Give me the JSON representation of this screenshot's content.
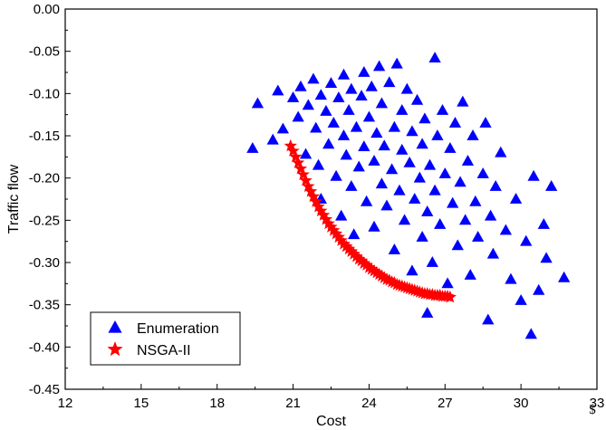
{
  "chart_data": {
    "type": "scatter",
    "title": "",
    "xlabel": "Cost",
    "ylabel": "Traffic flow",
    "x_unit": "$",
    "xlim": [
      12,
      33
    ],
    "ylim": [
      -0.45,
      0.0
    ],
    "x_ticks": [
      "12",
      "15",
      "18",
      "21",
      "24",
      "27",
      "30",
      "33"
    ],
    "y_ticks": [
      "0.00",
      "-0.05",
      "-0.10",
      "-0.15",
      "-0.20",
      "-0.25",
      "-0.30",
      "-0.35",
      "-0.40",
      "-0.45"
    ],
    "grid": false,
    "legend_position": "bottom-left",
    "series": [
      {
        "name": "Enumeration",
        "marker": "triangle",
        "color": "#0000ff",
        "points": [
          [
            19.4,
            -0.165
          ],
          [
            19.6,
            -0.112
          ],
          [
            20.2,
            -0.155
          ],
          [
            20.4,
            -0.097
          ],
          [
            20.6,
            -0.142
          ],
          [
            21.0,
            -0.105
          ],
          [
            21.2,
            -0.128
          ],
          [
            21.3,
            -0.092
          ],
          [
            21.5,
            -0.172
          ],
          [
            21.6,
            -0.114
          ],
          [
            21.8,
            -0.083
          ],
          [
            21.9,
            -0.141
          ],
          [
            22.0,
            -0.185
          ],
          [
            22.1,
            -0.225
          ],
          [
            22.1,
            -0.102
          ],
          [
            22.3,
            -0.121
          ],
          [
            22.4,
            -0.16
          ],
          [
            22.5,
            -0.088
          ],
          [
            22.6,
            -0.135
          ],
          [
            22.7,
            -0.198
          ],
          [
            22.8,
            -0.105
          ],
          [
            22.9,
            -0.245
          ],
          [
            23.0,
            -0.15
          ],
          [
            23.0,
            -0.078
          ],
          [
            23.1,
            -0.173
          ],
          [
            23.2,
            -0.12
          ],
          [
            23.3,
            -0.21
          ],
          [
            23.3,
            -0.095
          ],
          [
            23.4,
            -0.267
          ],
          [
            23.5,
            -0.14
          ],
          [
            23.6,
            -0.187
          ],
          [
            23.7,
            -0.103
          ],
          [
            23.8,
            -0.075
          ],
          [
            23.8,
            -0.163
          ],
          [
            23.9,
            -0.228
          ],
          [
            24.0,
            -0.128
          ],
          [
            24.1,
            -0.092
          ],
          [
            24.2,
            -0.18
          ],
          [
            24.2,
            -0.258
          ],
          [
            24.3,
            -0.147
          ],
          [
            24.4,
            -0.068
          ],
          [
            24.5,
            -0.207
          ],
          [
            24.5,
            -0.112
          ],
          [
            24.6,
            -0.162
          ],
          [
            24.7,
            -0.233
          ],
          [
            24.8,
            -0.087
          ],
          [
            24.9,
            -0.19
          ],
          [
            25.0,
            -0.14
          ],
          [
            25.0,
            -0.285
          ],
          [
            25.1,
            -0.065
          ],
          [
            25.2,
            -0.215
          ],
          [
            25.3,
            -0.12
          ],
          [
            25.3,
            -0.167
          ],
          [
            25.4,
            -0.25
          ],
          [
            25.5,
            -0.095
          ],
          [
            25.6,
            -0.182
          ],
          [
            25.7,
            -0.31
          ],
          [
            25.7,
            -0.145
          ],
          [
            25.8,
            -0.225
          ],
          [
            25.9,
            -0.108
          ],
          [
            26.0,
            -0.2
          ],
          [
            26.1,
            -0.27
          ],
          [
            26.1,
            -0.16
          ],
          [
            26.2,
            -0.13
          ],
          [
            26.3,
            -0.36
          ],
          [
            26.3,
            -0.24
          ],
          [
            26.4,
            -0.185
          ],
          [
            26.5,
            -0.3
          ],
          [
            26.6,
            -0.058
          ],
          [
            26.6,
            -0.215
          ],
          [
            26.7,
            -0.15
          ],
          [
            26.8,
            -0.255
          ],
          [
            26.9,
            -0.12
          ],
          [
            27.0,
            -0.195
          ],
          [
            27.1,
            -0.325
          ],
          [
            27.2,
            -0.165
          ],
          [
            27.3,
            -0.23
          ],
          [
            27.4,
            -0.135
          ],
          [
            27.5,
            -0.28
          ],
          [
            27.6,
            -0.205
          ],
          [
            27.7,
            -0.11
          ],
          [
            27.8,
            -0.25
          ],
          [
            27.9,
            -0.18
          ],
          [
            28.0,
            -0.315
          ],
          [
            28.1,
            -0.15
          ],
          [
            28.2,
            -0.228
          ],
          [
            28.3,
            -0.27
          ],
          [
            28.5,
            -0.195
          ],
          [
            28.6,
            -0.135
          ],
          [
            28.7,
            -0.368
          ],
          [
            28.8,
            -0.245
          ],
          [
            28.9,
            -0.29
          ],
          [
            29.0,
            -0.21
          ],
          [
            29.2,
            -0.17
          ],
          [
            29.4,
            -0.262
          ],
          [
            29.6,
            -0.32
          ],
          [
            29.8,
            -0.225
          ],
          [
            30.0,
            -0.345
          ],
          [
            30.2,
            -0.275
          ],
          [
            30.4,
            -0.385
          ],
          [
            30.5,
            -0.198
          ],
          [
            30.7,
            -0.333
          ],
          [
            30.9,
            -0.255
          ],
          [
            31.0,
            -0.295
          ],
          [
            31.2,
            -0.21
          ],
          [
            31.7,
            -0.318
          ]
        ]
      },
      {
        "name": "NSGA-II",
        "marker": "star",
        "color": "#ff0000",
        "points": [
          [
            20.9,
            -0.162
          ],
          [
            21.0,
            -0.168
          ],
          [
            21.1,
            -0.175
          ],
          [
            21.2,
            -0.182
          ],
          [
            21.3,
            -0.189
          ],
          [
            21.4,
            -0.196
          ],
          [
            21.5,
            -0.203
          ],
          [
            21.6,
            -0.21
          ],
          [
            21.7,
            -0.216
          ],
          [
            21.8,
            -0.222
          ],
          [
            21.9,
            -0.228
          ],
          [
            22.0,
            -0.234
          ],
          [
            22.1,
            -0.239
          ],
          [
            22.2,
            -0.244
          ],
          [
            22.3,
            -0.249
          ],
          [
            22.4,
            -0.254
          ],
          [
            22.5,
            -0.258
          ],
          [
            22.6,
            -0.262
          ],
          [
            22.7,
            -0.266
          ],
          [
            22.8,
            -0.27
          ],
          [
            22.9,
            -0.274
          ],
          [
            23.0,
            -0.278
          ],
          [
            23.1,
            -0.281
          ],
          [
            23.2,
            -0.284
          ],
          [
            23.3,
            -0.287
          ],
          [
            23.4,
            -0.29
          ],
          [
            23.5,
            -0.293
          ],
          [
            23.6,
            -0.296
          ],
          [
            23.7,
            -0.298
          ],
          [
            23.8,
            -0.301
          ],
          [
            23.9,
            -0.303
          ],
          [
            24.0,
            -0.306
          ],
          [
            24.1,
            -0.308
          ],
          [
            24.2,
            -0.31
          ],
          [
            24.3,
            -0.312
          ],
          [
            24.4,
            -0.314
          ],
          [
            24.5,
            -0.316
          ],
          [
            24.6,
            -0.318
          ],
          [
            24.7,
            -0.32
          ],
          [
            24.8,
            -0.321
          ],
          [
            24.9,
            -0.323
          ],
          [
            25.0,
            -0.324
          ],
          [
            25.1,
            -0.326
          ],
          [
            25.2,
            -0.327
          ],
          [
            25.3,
            -0.328
          ],
          [
            25.4,
            -0.329
          ],
          [
            25.5,
            -0.33
          ],
          [
            25.6,
            -0.331
          ],
          [
            25.7,
            -0.332
          ],
          [
            25.8,
            -0.333
          ],
          [
            25.9,
            -0.334
          ],
          [
            26.0,
            -0.335
          ],
          [
            26.1,
            -0.336
          ],
          [
            26.2,
            -0.337
          ],
          [
            26.3,
            -0.337
          ],
          [
            26.4,
            -0.338
          ],
          [
            26.5,
            -0.338
          ],
          [
            26.6,
            -0.339
          ],
          [
            26.7,
            -0.339
          ],
          [
            26.8,
            -0.339
          ],
          [
            26.9,
            -0.34
          ],
          [
            27.0,
            -0.34
          ],
          [
            27.1,
            -0.34
          ],
          [
            27.2,
            -0.341
          ]
        ]
      }
    ]
  }
}
